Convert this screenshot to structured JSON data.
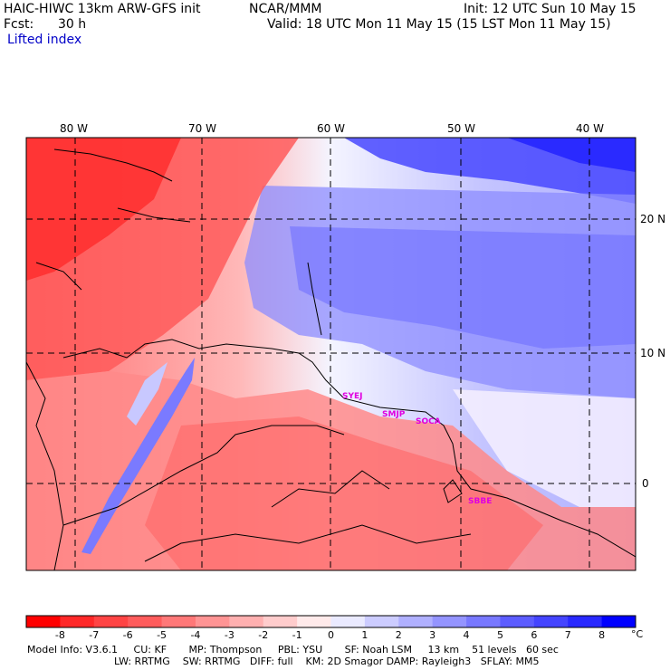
{
  "header": {
    "model": "HAIC-HIWC 13km ARW-GFS init",
    "org": "NCAR/MMM",
    "init": "Init: 12 UTC Sun 10 May 15",
    "fcst_label": "Fcst:",
    "fcst_value": "30 h",
    "valid": "Valid: 18 UTC Mon 11 May 15 (15 LST Mon 11 May 15)",
    "field": "Lifted index"
  },
  "map": {
    "lon_labels": [
      "80 W",
      "70 W",
      "60 W",
      "50 W",
      "40 W"
    ],
    "lat_labels": [
      "20 N",
      "10 N",
      "0"
    ],
    "stations": [
      "SYEJ",
      "SMJP",
      "SOCA",
      "SBBE"
    ],
    "colors": {
      "unstable": "#ff0000",
      "neutral": "#ffffff",
      "stable": "#0000ff",
      "station": "#e000e0"
    }
  },
  "colorbar": {
    "labels": [
      "-8",
      "-7",
      "-6",
      "-5",
      "-4",
      "-3",
      "-2",
      "-1",
      "0",
      "1",
      "2",
      "3",
      "4",
      "5",
      "6",
      "7",
      "8"
    ],
    "unit": "°C",
    "colors": [
      "#ff0000",
      "#ff2828",
      "#ff4444",
      "#ff5c5c",
      "#ff7878",
      "#ff9494",
      "#ffb0b0",
      "#ffcccc",
      "#ffeaea",
      "#eaeaff",
      "#ccccff",
      "#b0b0ff",
      "#9494ff",
      "#7878ff",
      "#5c5cff",
      "#4444ff",
      "#2828ff",
      "#0000ff"
    ]
  },
  "info": {
    "line1": "Model Info: V3.6.1     CU: KF       MP: Thompson     PBL: YSU       SF: Noah LSM     13 km    51 levels   60 sec",
    "line2": "LW: RRTMG    SW: RRTMG   DIFF: full    KM: 2D Smagor DAMP: Rayleigh3   SFLAY: MM5"
  }
}
